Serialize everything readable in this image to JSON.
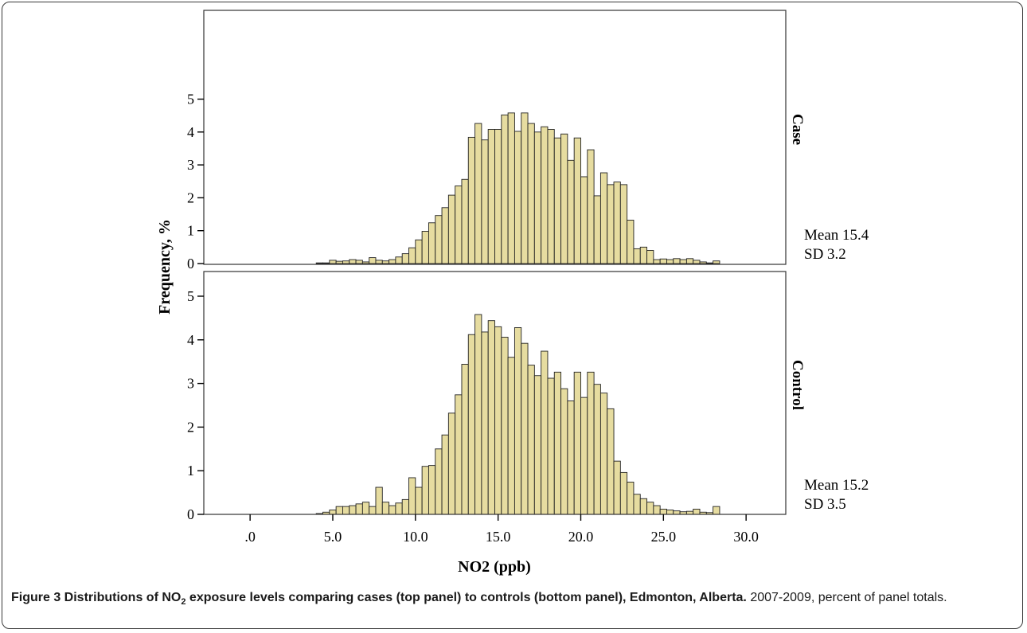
{
  "chart_data": {
    "type": "bar",
    "title": "",
    "xlabel": "NO2 (ppb)",
    "ylabel": "Frequency, %",
    "xlim": [
      -2.8,
      32.4
    ],
    "ylim": [
      0,
      5.5
    ],
    "bin_width": 0.4,
    "xticks": [
      0,
      5,
      10,
      15,
      20,
      25,
      30
    ],
    "xtick_labels": [
      ".0",
      "5.0",
      "10.0",
      "15.0",
      "20.0",
      "25.0",
      "30.0"
    ],
    "yticks": [
      0,
      1,
      2,
      3,
      4,
      5
    ],
    "ytick_labels": [
      "0",
      "1",
      "2",
      "3",
      "4",
      "5"
    ],
    "grid": false,
    "bar_color": "#e6dca0",
    "bar_edge_color": "#222222",
    "panels": [
      {
        "name": "Case",
        "stats": [
          "Mean 15.4",
          "SD 3.2"
        ],
        "x": [
          4.0,
          4.4,
          4.8,
          5.2,
          5.6,
          6.0,
          6.4,
          6.8,
          7.2,
          7.6,
          8.0,
          8.4,
          8.8,
          9.2,
          9.6,
          10.0,
          10.4,
          10.8,
          11.2,
          11.6,
          12.0,
          12.4,
          12.8,
          13.2,
          13.6,
          14.0,
          14.4,
          14.8,
          15.2,
          15.6,
          16.0,
          16.4,
          16.8,
          17.2,
          17.6,
          18.0,
          18.4,
          18.8,
          19.2,
          19.6,
          20.0,
          20.4,
          20.8,
          21.2,
          21.6,
          22.0,
          22.4,
          22.8,
          23.2,
          23.6,
          24.0,
          24.4,
          24.8,
          25.2,
          25.6,
          26.0,
          26.4,
          26.8,
          27.2,
          27.6,
          28.0
        ],
        "values": [
          0.02,
          0.02,
          0.1,
          0.07,
          0.08,
          0.12,
          0.1,
          0.05,
          0.18,
          0.1,
          0.08,
          0.12,
          0.2,
          0.3,
          0.48,
          0.72,
          0.98,
          1.24,
          1.46,
          1.7,
          2.08,
          2.36,
          2.56,
          3.84,
          4.26,
          3.76,
          4.08,
          4.08,
          4.52,
          4.58,
          4.02,
          4.58,
          4.26,
          4.0,
          4.16,
          4.08,
          3.82,
          3.94,
          3.14,
          3.82,
          2.64,
          3.46,
          2.06,
          2.76,
          2.4,
          2.48,
          2.4,
          1.32,
          0.45,
          0.5,
          0.4,
          0.12,
          0.14,
          0.12,
          0.15,
          0.12,
          0.15,
          0.1,
          0.05,
          0.02,
          0.08
        ]
      },
      {
        "name": "Control",
        "stats": [
          "Mean 15.2",
          "SD 3.5"
        ],
        "x": [
          4.0,
          4.4,
          4.8,
          5.2,
          5.6,
          6.0,
          6.4,
          6.8,
          7.2,
          7.6,
          8.0,
          8.4,
          8.8,
          9.2,
          9.6,
          10.0,
          10.4,
          10.8,
          11.2,
          11.6,
          12.0,
          12.4,
          12.8,
          13.2,
          13.6,
          14.0,
          14.4,
          14.8,
          15.2,
          15.6,
          16.0,
          16.4,
          16.8,
          17.2,
          17.6,
          18.0,
          18.4,
          18.8,
          19.2,
          19.6,
          20.0,
          20.4,
          20.8,
          21.2,
          21.6,
          22.0,
          22.4,
          22.8,
          23.2,
          23.6,
          24.0,
          24.4,
          24.8,
          25.2,
          25.6,
          26.0,
          26.4,
          26.8,
          27.2,
          27.6,
          28.0
        ],
        "values": [
          0.02,
          0.05,
          0.1,
          0.18,
          0.18,
          0.2,
          0.24,
          0.28,
          0.18,
          0.62,
          0.28,
          0.2,
          0.26,
          0.34,
          0.84,
          0.62,
          1.1,
          1.12,
          1.5,
          1.82,
          2.32,
          2.74,
          3.44,
          4.12,
          4.58,
          4.18,
          4.44,
          4.3,
          4.06,
          3.6,
          4.28,
          3.92,
          3.42,
          3.18,
          3.74,
          3.12,
          3.26,
          2.88,
          2.6,
          3.26,
          2.68,
          3.26,
          2.98,
          2.78,
          2.42,
          1.22,
          0.96,
          0.74,
          0.46,
          0.36,
          0.28,
          0.2,
          0.12,
          0.1,
          0.08,
          0.06,
          0.07,
          0.12,
          0.05,
          0.04,
          0.18
        ]
      }
    ]
  },
  "caption": {
    "bold_prefix": "Figure 3 Distributions of NO",
    "bold_sub": "2",
    "bold_suffix": " exposure levels comparing cases (top panel) to controls (bottom panel), Edmonton, Alberta.",
    "normal": " 2007-2009, percent of panel totals."
  }
}
